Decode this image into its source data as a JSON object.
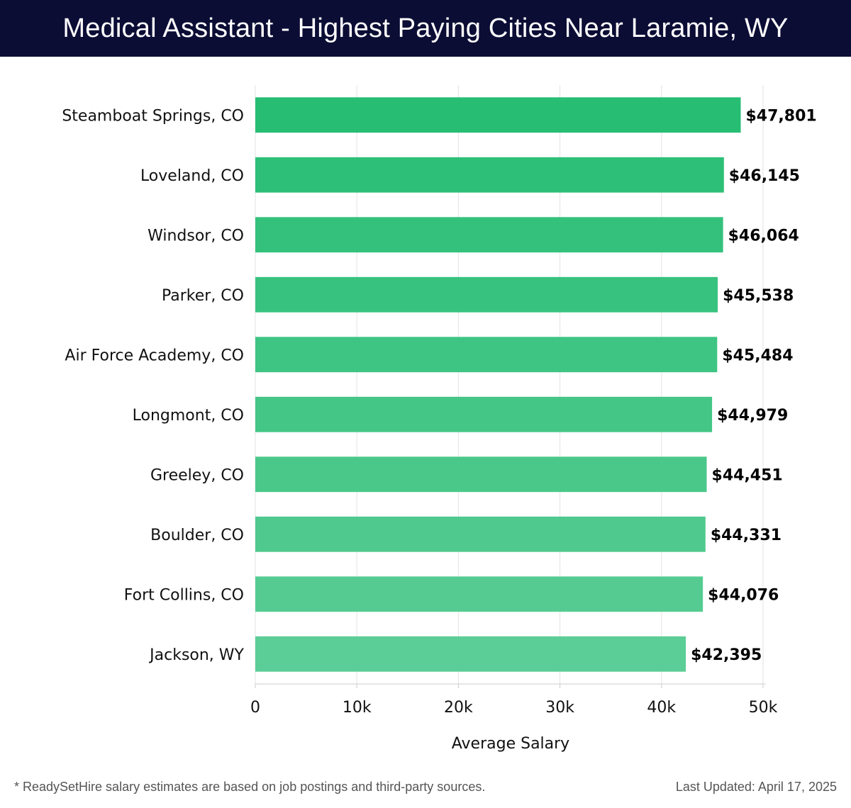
{
  "header": {
    "title": "Medical Assistant - Highest Paying Cities Near Laramie, WY"
  },
  "chart_data": {
    "type": "bar",
    "orientation": "horizontal",
    "title": "Medical Assistant - Highest Paying Cities Near Laramie, WY",
    "xlabel": "Average Salary",
    "ylabel": "",
    "xlim": [
      0,
      50000
    ],
    "x_ticks": [
      0,
      10000,
      20000,
      30000,
      40000,
      50000
    ],
    "x_tick_labels": [
      "0",
      "10k",
      "20k",
      "30k",
      "40k",
      "50k"
    ],
    "grid": "vertical",
    "categories": [
      "Steamboat Springs, CO",
      "Loveland, CO",
      "Windsor, CO",
      "Parker, CO",
      "Air Force Academy, CO",
      "Longmont, CO",
      "Greeley, CO",
      "Boulder, CO",
      "Fort Collins, CO",
      "Jackson, WY"
    ],
    "values": [
      47801,
      46145,
      46064,
      45538,
      45484,
      44979,
      44451,
      44331,
      44076,
      42395
    ],
    "value_labels": [
      "$47,801",
      "$46,145",
      "$46,064",
      "$45,538",
      "$45,484",
      "$44,979",
      "$44,451",
      "$44,331",
      "$44,076",
      "$42,395"
    ],
    "colors": {
      "bar_top": "#27bd73",
      "bar_bottom": "#5bcd96",
      "grid": "#e3e3e3",
      "axis": "#cccccc",
      "text": "#111111"
    }
  },
  "footer": {
    "note": "* ReadySetHire salary estimates are based on job postings and third-party sources.",
    "updated": "Last Updated: April 17, 2025"
  }
}
